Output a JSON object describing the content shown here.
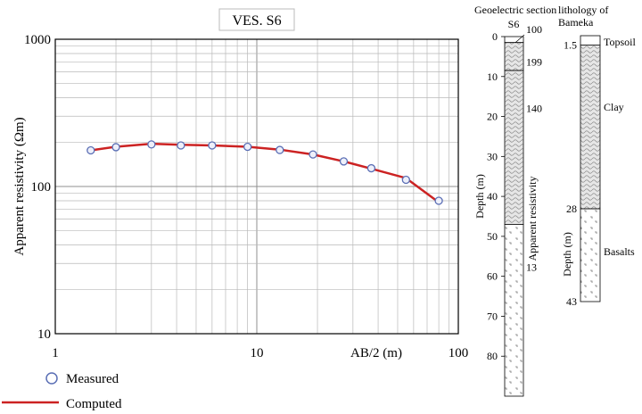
{
  "chart_data": [
    {
      "type": "scatter",
      "title": "VES. S6",
      "xlabel": "AB/2 (m)",
      "ylabel": "Apparent resistivity (Ωm)",
      "x_scale": "log",
      "y_scale": "log",
      "xlim": [
        1,
        100
      ],
      "ylim": [
        10,
        1000
      ],
      "x_ticks": [
        "1",
        "10",
        "100"
      ],
      "y_ticks": [
        "10",
        "100",
        "1000"
      ],
      "grid": true,
      "legend_position": "bottom-left",
      "series": [
        {
          "name": "Measured",
          "marker": "open-circle",
          "color": "#5b6fb5",
          "x": [
            1.5,
            2,
            3,
            4.2,
            6,
            9,
            13,
            19,
            27,
            37,
            55,
            80
          ],
          "y": [
            176,
            185,
            193,
            190,
            190,
            186,
            177,
            165,
            148,
            133,
            111,
            80
          ]
        },
        {
          "name": "Computed",
          "type": "line",
          "color": "#cc2222",
          "x": [
            1.5,
            2,
            3,
            4.2,
            6,
            9,
            13,
            19,
            27,
            37,
            55,
            80
          ],
          "y": [
            176,
            186,
            195,
            192,
            190,
            186,
            178,
            165,
            148,
            132,
            114,
            78
          ]
        }
      ]
    },
    {
      "type": "table",
      "title": "Geoelectric section",
      "column_label": "S6",
      "ylabel": "Depth (m)",
      "side_label": "Apparent resistivity",
      "depth_ticks": [
        0,
        10,
        20,
        30,
        40,
        50,
        60,
        70,
        80
      ],
      "depth_range": [
        0,
        90
      ],
      "layers": [
        {
          "top": 0,
          "bottom": 1.5,
          "resistivity": "100",
          "pattern": "blank"
        },
        {
          "top": 1.5,
          "bottom": 8.5,
          "resistivity": "199",
          "pattern": "clay"
        },
        {
          "top": 8.5,
          "bottom": 47,
          "resistivity": "140",
          "pattern": "clay"
        },
        {
          "top": 47,
          "bottom": 90,
          "resistivity": "13",
          "pattern": "basalt"
        }
      ]
    },
    {
      "type": "table",
      "title": "lithology of Bameka",
      "ylabel": "Depth (m)",
      "depth_range": [
        0,
        43
      ],
      "depth_labels": [
        "1.5",
        "28",
        "43"
      ],
      "layers": [
        {
          "top": 0,
          "bottom": 1.5,
          "name": "Topsoil",
          "pattern": "blank"
        },
        {
          "top": 1.5,
          "bottom": 28,
          "name": "Clay",
          "pattern": "clay"
        },
        {
          "top": 28,
          "bottom": 43,
          "name": "Basalts",
          "pattern": "basalt"
        }
      ]
    }
  ],
  "legend": {
    "measured_label": "Measured",
    "computed_label": "Computed"
  },
  "colors": {
    "measured": "#5b6fb5",
    "computed": "#cc2222",
    "grid": "#b9b9b9",
    "pattern_fill": "#e4e4e4",
    "pattern_mark": "#777777"
  }
}
